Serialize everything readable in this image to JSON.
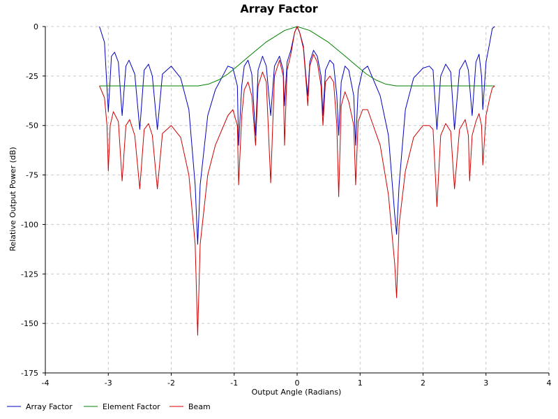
{
  "chart_data": {
    "type": "line",
    "title": "Array Factor",
    "xlabel": "Output Angle (Radians)",
    "ylabel": "Relative Output Power (dB)",
    "xlim": [
      -4,
      4
    ],
    "ylim": [
      -175,
      0
    ],
    "xticks": [
      -4,
      -3,
      -2,
      -1,
      0,
      1,
      2,
      3,
      4
    ],
    "yticks": [
      0,
      -25,
      -50,
      -75,
      -100,
      -125,
      -150,
      -175
    ],
    "grid": true,
    "legend_position": "bottom-left",
    "series": [
      {
        "name": "Array Factor",
        "color": "#0000c0",
        "points": [
          [
            -3.14,
            0
          ],
          [
            -3.06,
            -8
          ],
          [
            -3.0,
            -43
          ],
          [
            -2.95,
            -15
          ],
          [
            -2.9,
            -13
          ],
          [
            -2.84,
            -18
          ],
          [
            -2.78,
            -45
          ],
          [
            -2.72,
            -20
          ],
          [
            -2.67,
            -17
          ],
          [
            -2.58,
            -24
          ],
          [
            -2.5,
            -52
          ],
          [
            -2.43,
            -22
          ],
          [
            -2.36,
            -19
          ],
          [
            -2.3,
            -25
          ],
          [
            -2.22,
            -52
          ],
          [
            -2.14,
            -24
          ],
          [
            -2.0,
            -20
          ],
          [
            -1.85,
            -26
          ],
          [
            -1.72,
            -42
          ],
          [
            -1.62,
            -80
          ],
          [
            -1.58,
            -110
          ],
          [
            -1.54,
            -80
          ],
          [
            -1.42,
            -45
          ],
          [
            -1.3,
            -32
          ],
          [
            -1.1,
            -20
          ],
          [
            -1.02,
            -21
          ],
          [
            -0.95,
            -30
          ],
          [
            -0.93,
            -60
          ],
          [
            -0.88,
            -30
          ],
          [
            -0.84,
            -20
          ],
          [
            -0.78,
            -17
          ],
          [
            -0.72,
            -24
          ],
          [
            -0.66,
            -55
          ],
          [
            -0.62,
            -22
          ],
          [
            -0.55,
            -15
          ],
          [
            -0.49,
            -20
          ],
          [
            -0.42,
            -45
          ],
          [
            -0.36,
            -20
          ],
          [
            -0.28,
            -15
          ],
          [
            -0.22,
            -22
          ],
          [
            -0.2,
            -40
          ],
          [
            -0.16,
            -18
          ],
          [
            -0.1,
            -12
          ],
          [
            -0.04,
            -3
          ],
          [
            0.0,
            0
          ],
          [
            0.04,
            -3
          ],
          [
            0.1,
            -10
          ],
          [
            0.14,
            -25
          ],
          [
            0.17,
            -35
          ],
          [
            0.2,
            -18
          ],
          [
            0.26,
            -12
          ],
          [
            0.32,
            -15
          ],
          [
            0.38,
            -25
          ],
          [
            0.41,
            -45
          ],
          [
            0.45,
            -22
          ],
          [
            0.52,
            -17
          ],
          [
            0.58,
            -19
          ],
          [
            0.63,
            -35
          ],
          [
            0.66,
            -55
          ],
          [
            0.7,
            -28
          ],
          [
            0.76,
            -20
          ],
          [
            0.82,
            -22
          ],
          [
            0.9,
            -35
          ],
          [
            0.93,
            -60
          ],
          [
            0.97,
            -32
          ],
          [
            1.04,
            -22
          ],
          [
            1.12,
            -20
          ],
          [
            1.32,
            -35
          ],
          [
            1.45,
            -55
          ],
          [
            1.55,
            -95
          ],
          [
            1.58,
            -105
          ],
          [
            1.62,
            -80
          ],
          [
            1.72,
            -42
          ],
          [
            1.85,
            -26
          ],
          [
            2.0,
            -21
          ],
          [
            2.1,
            -20
          ],
          [
            2.16,
            -22
          ],
          [
            2.22,
            -52
          ],
          [
            2.28,
            -25
          ],
          [
            2.36,
            -19
          ],
          [
            2.44,
            -23
          ],
          [
            2.5,
            -52
          ],
          [
            2.58,
            -22
          ],
          [
            2.67,
            -17
          ],
          [
            2.72,
            -22
          ],
          [
            2.78,
            -45
          ],
          [
            2.84,
            -18
          ],
          [
            2.89,
            -14
          ],
          [
            2.93,
            -25
          ],
          [
            2.95,
            -42
          ],
          [
            3.0,
            -18
          ],
          [
            3.06,
            -8
          ],
          [
            3.1,
            -1
          ],
          [
            3.14,
            0
          ]
        ]
      },
      {
        "name": "Element Factor",
        "color": "#008000",
        "points": [
          [
            -3.14,
            -30
          ],
          [
            -1.57,
            -30
          ],
          [
            -1.4,
            -29
          ],
          [
            -1.25,
            -27
          ],
          [
            -1.1,
            -24
          ],
          [
            -0.95,
            -20
          ],
          [
            -0.8,
            -16
          ],
          [
            -0.65,
            -12
          ],
          [
            -0.5,
            -8
          ],
          [
            -0.35,
            -5
          ],
          [
            -0.2,
            -2
          ],
          [
            0.0,
            0
          ],
          [
            0.2,
            -2
          ],
          [
            0.35,
            -5
          ],
          [
            0.5,
            -8
          ],
          [
            0.65,
            -12
          ],
          [
            0.8,
            -16
          ],
          [
            0.95,
            -20
          ],
          [
            1.1,
            -24
          ],
          [
            1.25,
            -27
          ],
          [
            1.4,
            -29
          ],
          [
            1.57,
            -30
          ],
          [
            3.14,
            -30
          ]
        ]
      },
      {
        "name": "Beam",
        "color": "#d00000",
        "points": [
          [
            -3.14,
            -30
          ],
          [
            -3.06,
            -36
          ],
          [
            -3.02,
            -50
          ],
          [
            -3.0,
            -73
          ],
          [
            -2.97,
            -50
          ],
          [
            -2.92,
            -43
          ],
          [
            -2.84,
            -48
          ],
          [
            -2.78,
            -78
          ],
          [
            -2.72,
            -50
          ],
          [
            -2.66,
            -47
          ],
          [
            -2.58,
            -55
          ],
          [
            -2.5,
            -82
          ],
          [
            -2.43,
            -52
          ],
          [
            -2.36,
            -49
          ],
          [
            -2.3,
            -55
          ],
          [
            -2.22,
            -82
          ],
          [
            -2.14,
            -54
          ],
          [
            -2.0,
            -50
          ],
          [
            -1.85,
            -56
          ],
          [
            -1.72,
            -75
          ],
          [
            -1.62,
            -110
          ],
          [
            -1.58,
            -156
          ],
          [
            -1.54,
            -110
          ],
          [
            -1.42,
            -75
          ],
          [
            -1.3,
            -60
          ],
          [
            -1.1,
            -45
          ],
          [
            -1.02,
            -42
          ],
          [
            -0.95,
            -50
          ],
          [
            -0.93,
            -80
          ],
          [
            -0.88,
            -45
          ],
          [
            -0.84,
            -32
          ],
          [
            -0.78,
            -28
          ],
          [
            -0.72,
            -35
          ],
          [
            -0.66,
            -60
          ],
          [
            -0.62,
            -30
          ],
          [
            -0.55,
            -23
          ],
          [
            -0.49,
            -28
          ],
          [
            -0.42,
            -79
          ],
          [
            -0.36,
            -25
          ],
          [
            -0.28,
            -17
          ],
          [
            -0.22,
            -25
          ],
          [
            -0.2,
            -60
          ],
          [
            -0.16,
            -22
          ],
          [
            -0.1,
            -14
          ],
          [
            -0.04,
            -3
          ],
          [
            0.0,
            0
          ],
          [
            0.04,
            -3
          ],
          [
            0.1,
            -11
          ],
          [
            0.14,
            -27
          ],
          [
            0.17,
            -40
          ],
          [
            0.2,
            -20
          ],
          [
            0.26,
            -14
          ],
          [
            0.32,
            -18
          ],
          [
            0.38,
            -30
          ],
          [
            0.41,
            -50
          ],
          [
            0.45,
            -28
          ],
          [
            0.52,
            -25
          ],
          [
            0.58,
            -28
          ],
          [
            0.63,
            -50
          ],
          [
            0.66,
            -86
          ],
          [
            0.7,
            -40
          ],
          [
            0.76,
            -33
          ],
          [
            0.82,
            -38
          ],
          [
            0.9,
            -50
          ],
          [
            0.93,
            -80
          ],
          [
            0.97,
            -48
          ],
          [
            1.04,
            -42
          ],
          [
            1.12,
            -42
          ],
          [
            1.32,
            -60
          ],
          [
            1.45,
            -85
          ],
          [
            1.55,
            -120
          ],
          [
            1.58,
            -137
          ],
          [
            1.62,
            -100
          ],
          [
            1.72,
            -73
          ],
          [
            1.85,
            -56
          ],
          [
            2.0,
            -50
          ],
          [
            2.1,
            -50
          ],
          [
            2.16,
            -52
          ],
          [
            2.22,
            -91
          ],
          [
            2.28,
            -55
          ],
          [
            2.36,
            -49
          ],
          [
            2.44,
            -53
          ],
          [
            2.5,
            -82
          ],
          [
            2.58,
            -52
          ],
          [
            2.67,
            -47
          ],
          [
            2.72,
            -55
          ],
          [
            2.74,
            -78
          ],
          [
            2.78,
            -55
          ],
          [
            2.84,
            -48
          ],
          [
            2.89,
            -44
          ],
          [
            2.93,
            -50
          ],
          [
            2.95,
            -70
          ],
          [
            3.0,
            -45
          ],
          [
            3.06,
            -36
          ],
          [
            3.1,
            -31
          ],
          [
            3.14,
            -30
          ]
        ]
      }
    ]
  }
}
